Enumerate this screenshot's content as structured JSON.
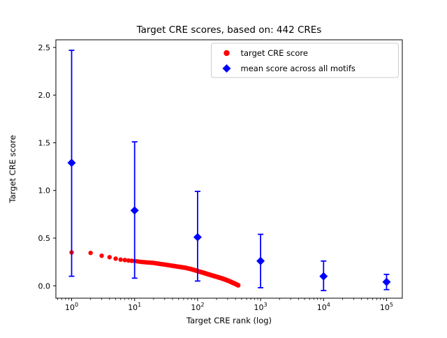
{
  "figure": {
    "background": "#ffffff"
  },
  "chart_data": {
    "type": "scatter",
    "title": "Target CRE scores, based on: 442 CREs",
    "xlabel": "Target CRE rank (log)",
    "ylabel": "Target CRE score",
    "x_scale": "log",
    "xlim_log10": [
      -0.25,
      5.25
    ],
    "ylim": [
      -0.13,
      2.58
    ],
    "grid": false,
    "x_ticks": {
      "base": "10",
      "exponents": [
        0,
        1,
        2,
        3,
        4,
        5
      ]
    },
    "y_ticks": {
      "values": [
        0.0,
        0.5,
        1.0,
        1.5,
        2.0,
        2.5
      ],
      "labels": [
        "0.0",
        "0.5",
        "1.0",
        "1.5",
        "2.0",
        "2.5"
      ]
    },
    "series": [
      {
        "name": "target CRE score",
        "marker": "circle",
        "color": "#ff0000",
        "n_points": 442,
        "note": "dense descending curve; anchors are [rank, score] pairs interpolated in log-rank",
        "anchors": [
          [
            1,
            0.35
          ],
          [
            2,
            0.345
          ],
          [
            3,
            0.315
          ],
          [
            4,
            0.3
          ],
          [
            5,
            0.285
          ],
          [
            6,
            0.275
          ],
          [
            7,
            0.27
          ],
          [
            8,
            0.265
          ],
          [
            10,
            0.26
          ],
          [
            13,
            0.25
          ],
          [
            16,
            0.245
          ],
          [
            20,
            0.24
          ],
          [
            25,
            0.23
          ],
          [
            32,
            0.22
          ],
          [
            40,
            0.21
          ],
          [
            50,
            0.2
          ],
          [
            63,
            0.19
          ],
          [
            79,
            0.175
          ],
          [
            100,
            0.155
          ],
          [
            126,
            0.135
          ],
          [
            158,
            0.115
          ],
          [
            200,
            0.095
          ],
          [
            251,
            0.075
          ],
          [
            316,
            0.05
          ],
          [
            398,
            0.02
          ],
          [
            442,
            0.005
          ]
        ]
      },
      {
        "name": "mean score across all motifs",
        "marker": "diamond",
        "color": "#0000ff",
        "x": [
          1,
          10,
          100,
          1000,
          10000,
          100000
        ],
        "y": [
          1.29,
          0.79,
          0.51,
          0.26,
          0.1,
          0.04
        ],
        "err_low": [
          1.19,
          0.71,
          0.46,
          0.28,
          0.15,
          0.08
        ],
        "err_high": [
          1.18,
          0.72,
          0.48,
          0.28,
          0.16,
          0.08
        ]
      }
    ],
    "legend": {
      "position": "upper right",
      "frame": true,
      "entries": [
        "target CRE score",
        "mean score across all motifs"
      ]
    }
  }
}
